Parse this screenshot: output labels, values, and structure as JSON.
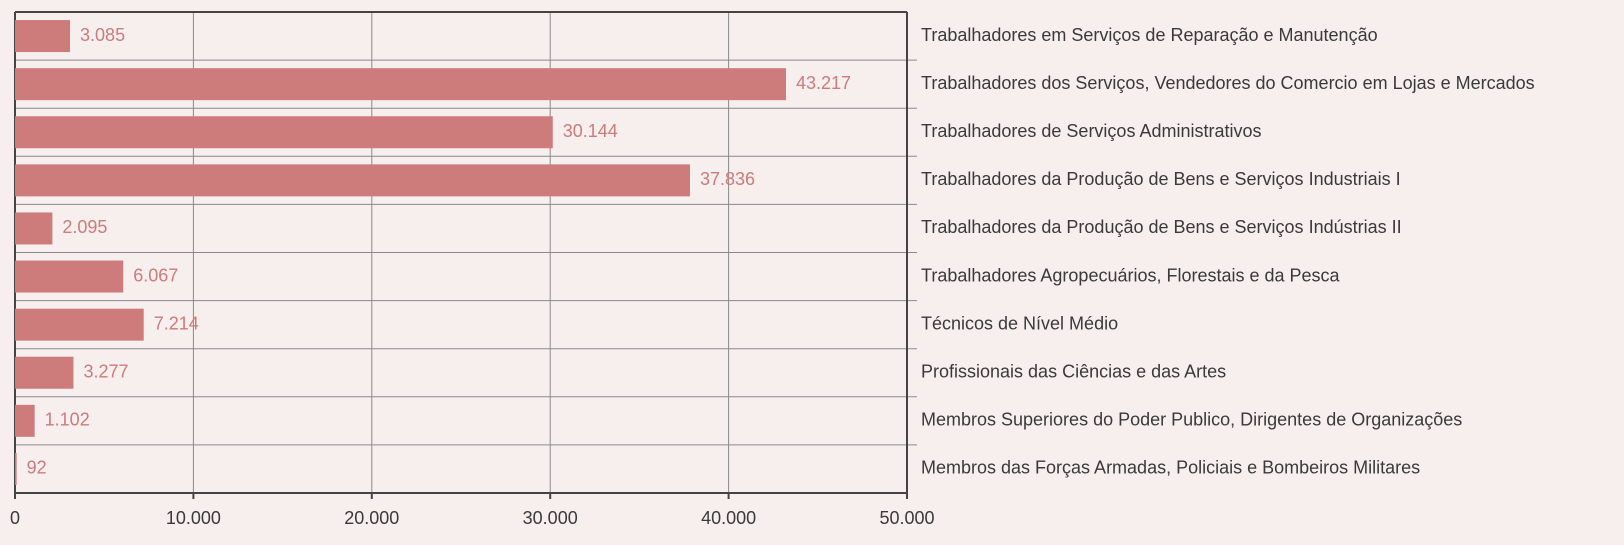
{
  "chart_data": {
    "type": "bar",
    "orientation": "horizontal",
    "categories": [
      "Trabalhadores em Serviços de Reparação e Manutenção",
      "Trabalhadores dos Serviços, Vendedores do Comercio em Lojas e Mercados",
      "Trabalhadores de Serviços Administrativos",
      "Trabalhadores da Produção de Bens e Serviços Industriais I",
      "Trabalhadores da Produção de Bens e Serviços Indústrias II",
      "Trabalhadores Agropecuários, Florestais e da Pesca",
      "Técnicos de Nível Médio",
      "Profissionais das Ciências e das Artes",
      "Membros Superiores do Poder Publico, Dirigentes de Organizações",
      "Membros das Forças Armadas, Policiais e Bombeiros Militares"
    ],
    "values": [
      3085,
      43217,
      30144,
      37836,
      2095,
      6067,
      7214,
      3277,
      1102,
      92
    ],
    "value_labels": [
      "3.085",
      "43.217",
      "30.144",
      "37.836",
      "2.095",
      "6.067",
      "7.214",
      "3.277",
      "1.102",
      "92"
    ],
    "color": "#cd7b7b",
    "xlim": [
      0,
      50000
    ],
    "xticks": [
      0,
      {
        "value": 10000,
        "label": "10.000"
      },
      {
        "value": 20000,
        "label": "20.000"
      },
      {
        "value": 30000,
        "label": "30.000"
      },
      {
        "value": 40000,
        "label": "40.000"
      },
      {
        "value": 50000,
        "label": "50.000"
      }
    ],
    "grid": true
  }
}
